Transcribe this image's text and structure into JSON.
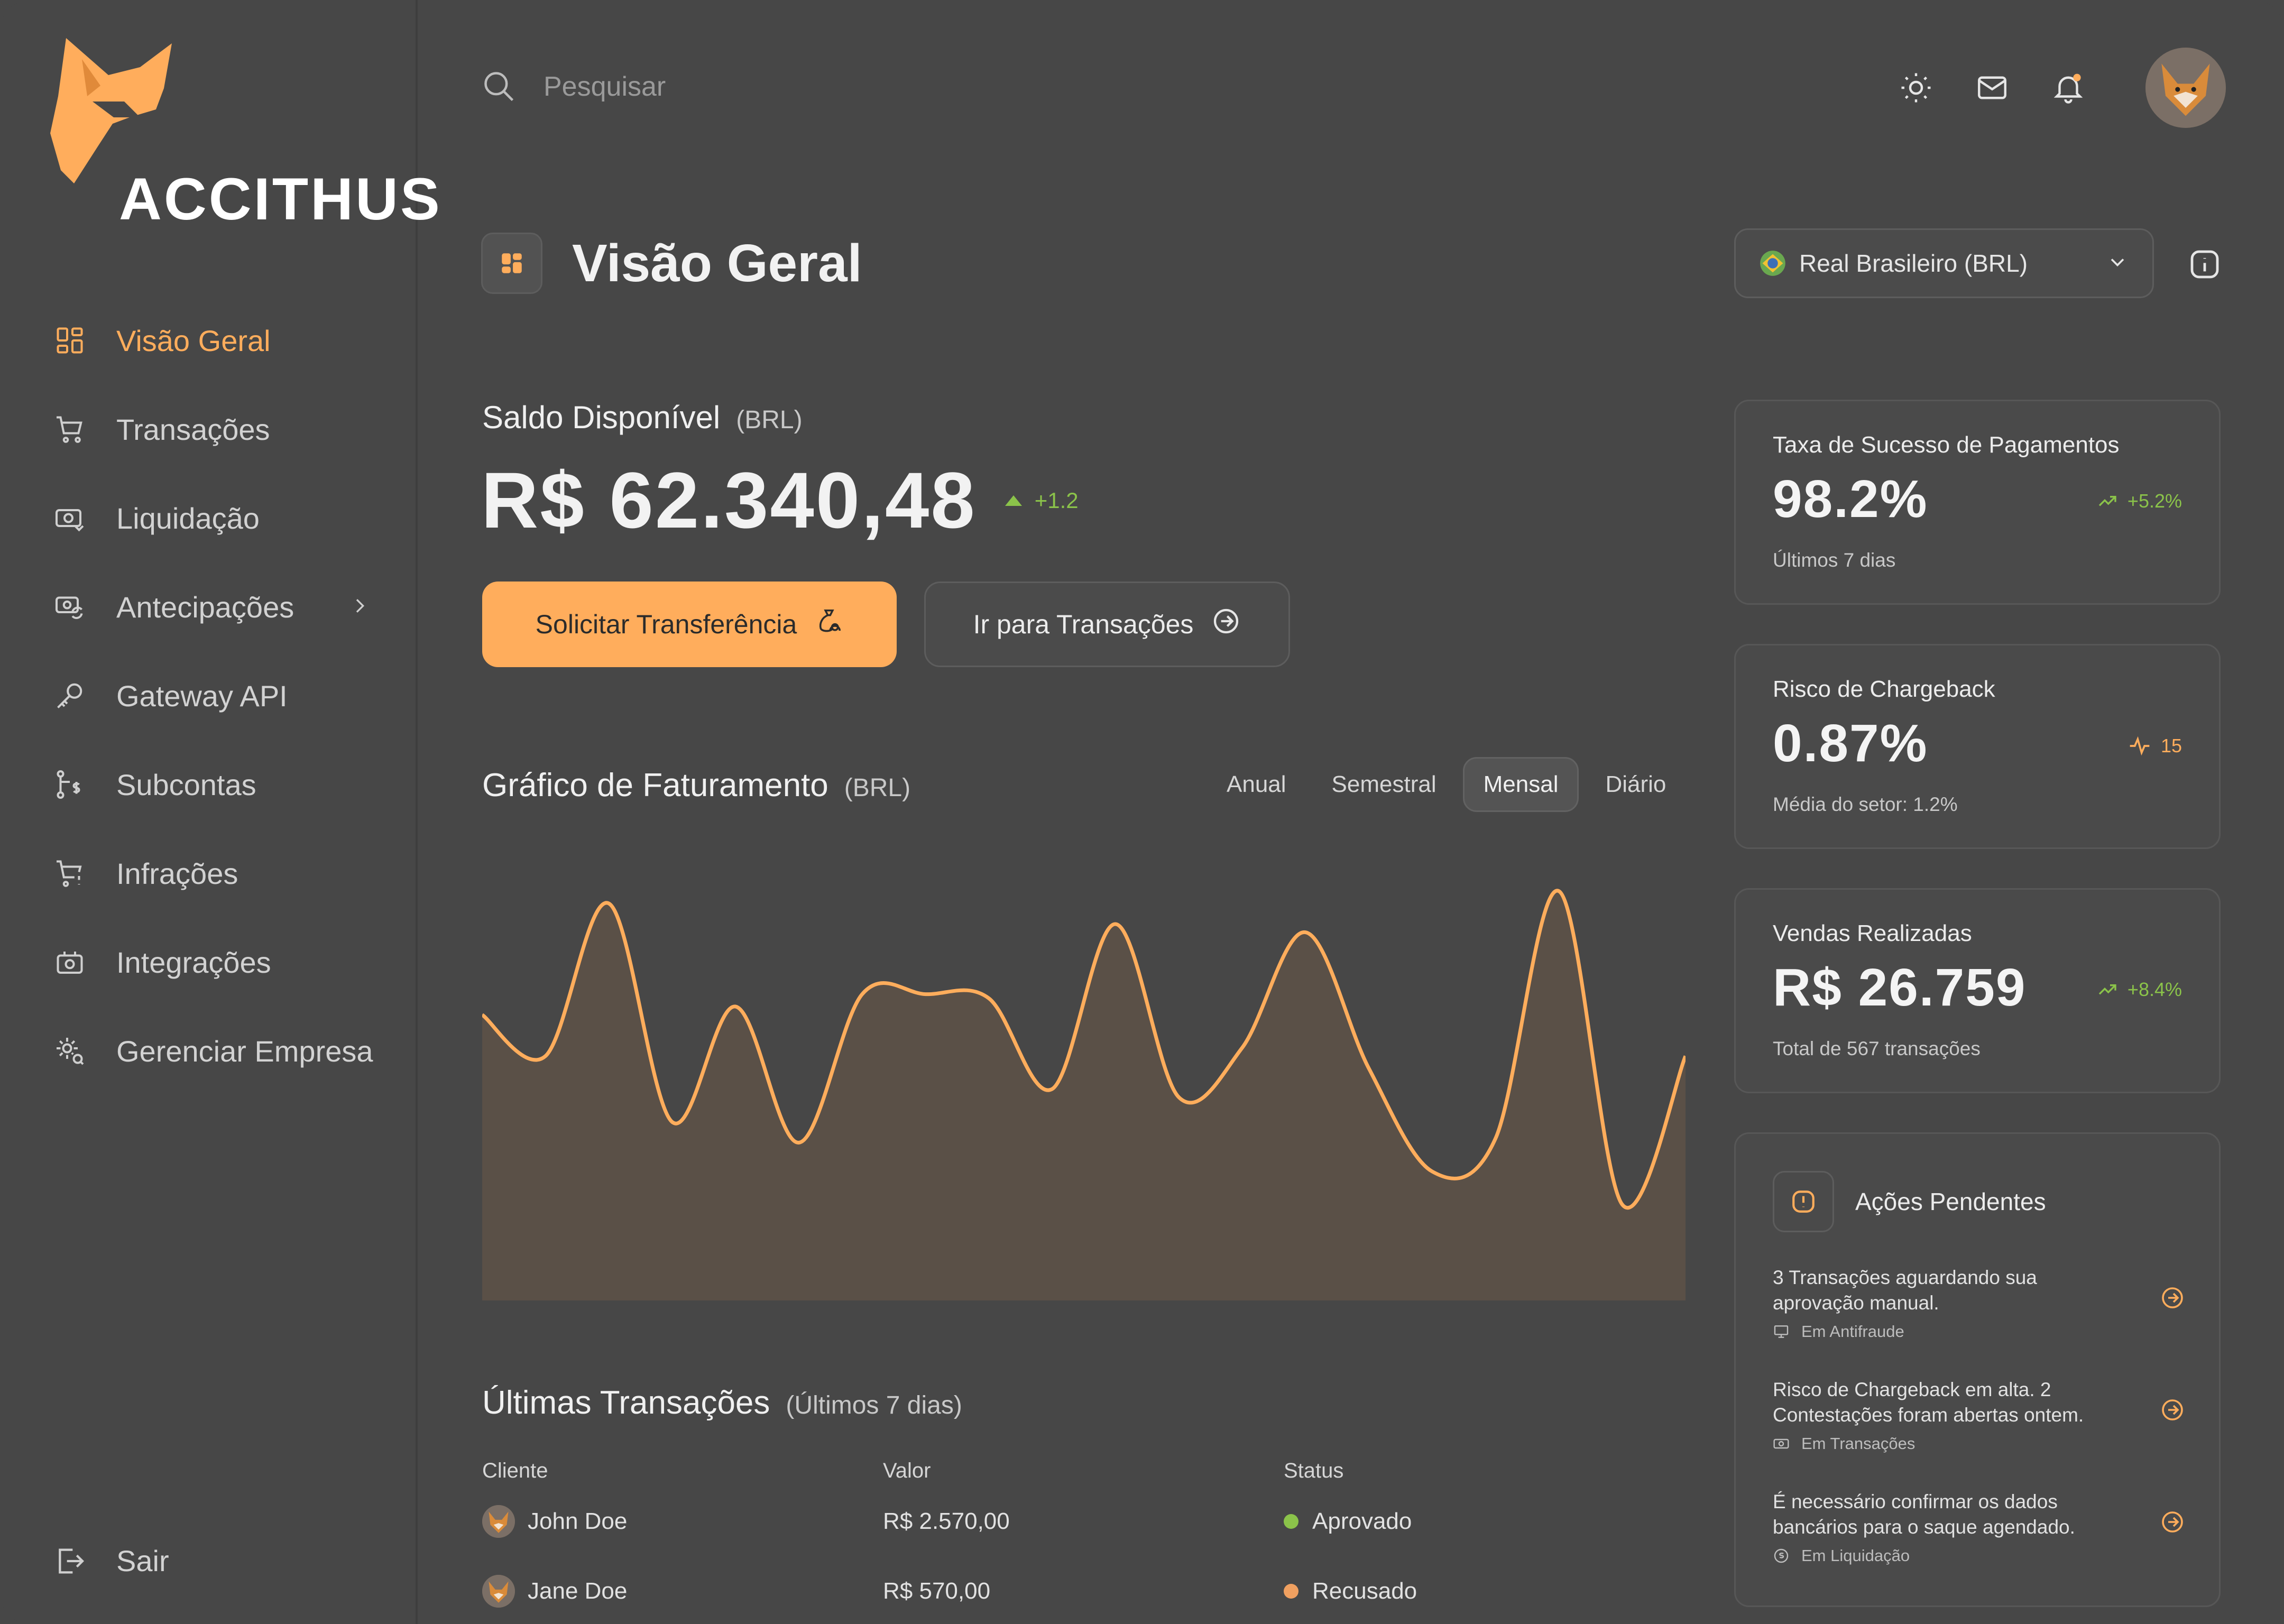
{
  "brand": {
    "name": "ACCITHUS"
  },
  "sidebar": {
    "items": [
      {
        "label": "Visão Geral",
        "icon": "grid-icon",
        "active": true
      },
      {
        "label": "Transações",
        "icon": "cart-icon"
      },
      {
        "label": "Liquidação",
        "icon": "cash-icon"
      },
      {
        "label": "Antecipações",
        "icon": "cash-refresh-icon",
        "has_submenu": true
      },
      {
        "label": "Gateway API",
        "icon": "key-icon"
      },
      {
        "label": "Subcontas",
        "icon": "branch-dollar-icon"
      },
      {
        "label": "Infrações",
        "icon": "cart-alert-icon"
      },
      {
        "label": "Integrações",
        "icon": "puzzle-icon"
      },
      {
        "label": "Gerenciar Empresa",
        "icon": "gear-search-icon"
      }
    ],
    "logout_label": "Sair"
  },
  "topbar": {
    "search_placeholder": "Pesquisar",
    "icons": [
      "sun-icon",
      "mail-icon",
      "bell-icon",
      "avatar"
    ]
  },
  "page": {
    "title": "Visão Geral"
  },
  "currency": {
    "label": "Real Brasileiro (BRL)"
  },
  "balance": {
    "label": "Saldo Disponível",
    "unit": "(BRL)",
    "value": "R$ 62.340,48",
    "delta": "+1.2"
  },
  "actions": {
    "primary": "Solicitar Transferência",
    "secondary": "Ir para Transações"
  },
  "revenue_chart": {
    "title": "Gráfico de Faturamento",
    "unit": "(BRL)",
    "periods": [
      "Anual",
      "Semestral",
      "Mensal",
      "Diário"
    ],
    "active_period": "Mensal"
  },
  "chart_data": {
    "type": "area",
    "title": "Gráfico de Faturamento",
    "xlabel": "",
    "ylabel": "",
    "grid": false,
    "series": [
      {
        "values": [
          0.68,
          0.58,
          0.95,
          0.42,
          0.7,
          0.37,
          0.73,
          0.73,
          0.72,
          0.5,
          0.9,
          0.48,
          0.6,
          0.88,
          0.55,
          0.3,
          0.38,
          0.98,
          0.22,
          0.58
        ]
      }
    ],
    "y_range": [
      0,
      1
    ],
    "color": "#ffad5c",
    "fill": "#5a5047"
  },
  "transactions": {
    "title": "Últimas Transações",
    "subtitle": "(Últimos 7 dias)",
    "columns": [
      "Cliente",
      "Valor",
      "Status"
    ],
    "rows": [
      {
        "client": "John Doe",
        "value": "R$ 2.570,00",
        "status": "Aprovado",
        "status_color": "#8bc34a"
      },
      {
        "client": "Jane Doe",
        "value": "R$ 570,00",
        "status": "Recusado",
        "status_color": "#f0a060"
      }
    ]
  },
  "stats": [
    {
      "title": "Taxa de Sucesso de Pagamentos",
      "value": "98.2%",
      "delta": "+5.2%",
      "delta_color": "#8bc34a",
      "subtitle": "Últimos 7 dias"
    },
    {
      "title": "Risco de Chargeback",
      "value": "0.87%",
      "delta": "15",
      "delta_color": "#ffad5c",
      "subtitle": "Média do setor: 1.2%"
    },
    {
      "title": "Vendas Realizadas",
      "value": "R$ 26.759",
      "delta": "+8.4%",
      "delta_color": "#8bc34a",
      "subtitle": "Total de 567 transações"
    }
  ],
  "pending": {
    "title": "Ações Pendentes",
    "items": [
      {
        "text": "3 Transações aguardando sua aprovação manual.",
        "source": "Em Antifraude"
      },
      {
        "text": "Risco de Chargeback em alta. 2 Contestações foram abertas ontem.",
        "source": "Em Transações"
      },
      {
        "text": "É necessário confirmar os dados bancários para o saque agendado.",
        "source": "Em Liquidação"
      }
    ]
  }
}
